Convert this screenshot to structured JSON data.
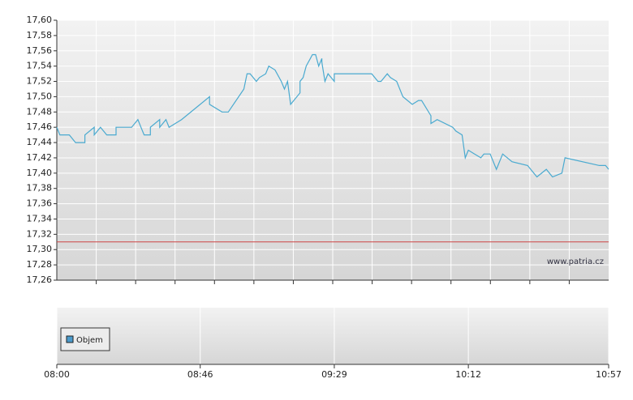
{
  "chart_data": {
    "type": "line",
    "xlim": [
      "08:00",
      "10:57"
    ],
    "xticks": [
      "08:00",
      "08:46",
      "09:29",
      "10:12",
      "10:57"
    ],
    "ylim": [
      17.26,
      17.6
    ],
    "yticks": [
      {
        "value": 17.26,
        "label": "17,26"
      },
      {
        "value": 17.28,
        "label": "17,28"
      },
      {
        "value": 17.3,
        "label": "17,30"
      },
      {
        "value": 17.32,
        "label": "17,32"
      },
      {
        "value": 17.34,
        "label": "17,34"
      },
      {
        "value": 17.36,
        "label": "17,36"
      },
      {
        "value": 17.38,
        "label": "17,38"
      },
      {
        "value": 17.4,
        "label": "17,40"
      },
      {
        "value": 17.42,
        "label": "17,42"
      },
      {
        "value": 17.44,
        "label": "17,44"
      },
      {
        "value": 17.46,
        "label": "17,46"
      },
      {
        "value": 17.48,
        "label": "17,48"
      },
      {
        "value": 17.5,
        "label": "17,50"
      },
      {
        "value": 17.52,
        "label": "17,52"
      },
      {
        "value": 17.54,
        "label": "17,54"
      },
      {
        "value": 17.56,
        "label": "17,56"
      },
      {
        "value": 17.58,
        "label": "17,58"
      },
      {
        "value": 17.6,
        "label": "17,60"
      }
    ],
    "grid": true,
    "reference_line": {
      "value": 17.31,
      "color": "#cc4444"
    },
    "watermark": "www.patria.cz",
    "volume_legend": {
      "name": "Objem",
      "color": "#4a9acb"
    },
    "series": [
      {
        "color": "#4aaad0",
        "x": [
          "08:00",
          "08:01",
          "08:04",
          "08:06",
          "08:09",
          "08:09",
          "08:12",
          "08:12",
          "08:14",
          "08:16",
          "08:19",
          "08:19",
          "08:24",
          "08:26",
          "08:27",
          "08:28",
          "08:30",
          "08:30",
          "08:33",
          "08:33",
          "08:35",
          "08:36",
          "08:40",
          "08:46",
          "08:49",
          "08:49",
          "08:53",
          "08:55",
          "09:00",
          "09:01",
          "09:02",
          "09:04",
          "09:05",
          "09:07",
          "09:08",
          "09:10",
          "09:12",
          "09:13",
          "09:14",
          "09:15",
          "09:18",
          "09:18",
          "09:19",
          "09:20",
          "09:22",
          "09:23",
          "09:24",
          "09:25",
          "09:25",
          "09:26",
          "09:27",
          "09:29",
          "09:29",
          "09:41",
          "09:43",
          "09:44",
          "09:46",
          "09:47",
          "09:49",
          "09:51",
          "09:54",
          "09:56",
          "09:57",
          "10:00",
          "10:00",
          "10:02",
          "10:07",
          "10:08",
          "10:10",
          "10:11",
          "10:12",
          "10:14",
          "10:16",
          "10:17",
          "10:19",
          "10:21",
          "10:23",
          "10:26",
          "10:31",
          "10:34",
          "10:37",
          "10:39",
          "10:42",
          "10:43",
          "10:54",
          "10:56",
          "10:57"
        ],
        "values": [
          17.46,
          17.45,
          17.45,
          17.44,
          17.44,
          17.45,
          17.46,
          17.45,
          17.46,
          17.45,
          17.45,
          17.46,
          17.46,
          17.47,
          17.46,
          17.45,
          17.45,
          17.46,
          17.47,
          17.46,
          17.47,
          17.46,
          17.47,
          17.49,
          17.5,
          17.49,
          17.48,
          17.48,
          17.51,
          17.53,
          17.53,
          17.52,
          17.525,
          17.53,
          17.54,
          17.535,
          17.52,
          17.51,
          17.52,
          17.49,
          17.505,
          17.52,
          17.525,
          17.54,
          17.555,
          17.555,
          17.54,
          17.55,
          17.545,
          17.52,
          17.53,
          17.52,
          17.53,
          17.53,
          17.52,
          17.52,
          17.53,
          17.525,
          17.52,
          17.5,
          17.49,
          17.495,
          17.495,
          17.475,
          17.465,
          17.47,
          17.46,
          17.455,
          17.45,
          17.42,
          17.43,
          17.425,
          17.42,
          17.425,
          17.425,
          17.405,
          17.425,
          17.415,
          17.41,
          17.395,
          17.405,
          17.395,
          17.4,
          17.42,
          17.41,
          17.41,
          17.405
        ]
      }
    ]
  }
}
